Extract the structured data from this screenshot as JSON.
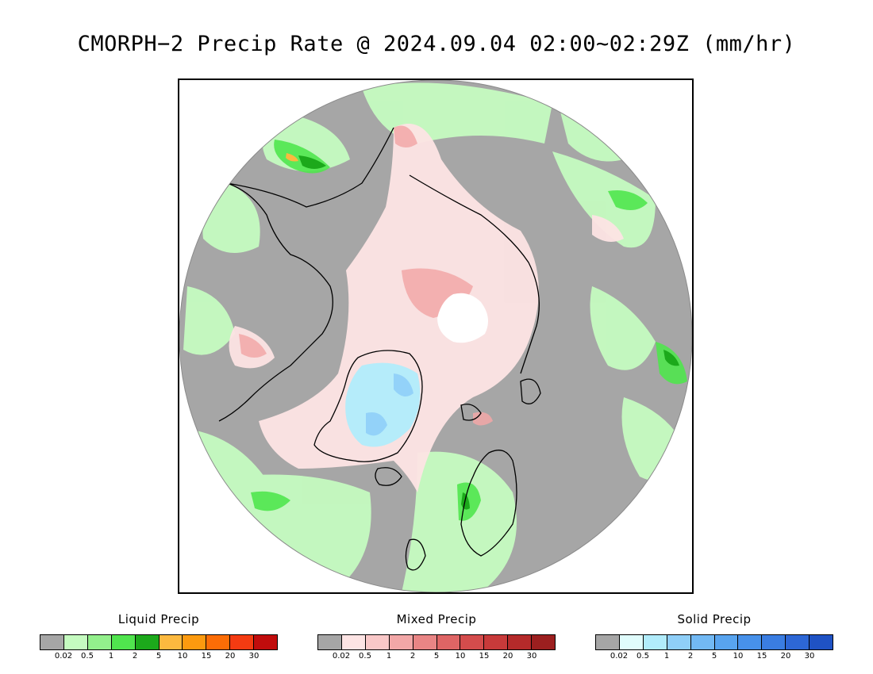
{
  "title": "CMORPH−2 Precip Rate @ 2024.09.04 02:00~02:29Z (mm/hr)",
  "map": {
    "projection": "north polar stereographic",
    "background_color": "#a6a6a6",
    "no_data_color": "#ffffff",
    "coastline_color": "#000000"
  },
  "legends": [
    {
      "title": "Liquid Precip",
      "colors": [
        "#a6a6a6",
        "#c5fbc0",
        "#93f08c",
        "#50e54e",
        "#1ca91b",
        "#fcb93f",
        "#fc9a0f",
        "#fc6d06",
        "#f43b12",
        "#c10c0c"
      ],
      "tick_labels": [
        "0.02",
        "0.5",
        "1",
        "2",
        "5",
        "10",
        "15",
        "20",
        "30"
      ]
    },
    {
      "title": "Mixed Precip",
      "colors": [
        "#a6a6a6",
        "#fde4e4",
        "#f9c8c8",
        "#f2a7a7",
        "#e98585",
        "#df6565",
        "#d44c4c",
        "#c83a3a",
        "#b52a2a",
        "#9c1f1f"
      ],
      "tick_labels": [
        "0.02",
        "0.5",
        "1",
        "2",
        "5",
        "10",
        "15",
        "20",
        "30"
      ]
    },
    {
      "title": "Solid Precip",
      "colors": [
        "#a6a6a6",
        "#e0fcfc",
        "#b1ecfb",
        "#8fcff8",
        "#72b9f4",
        "#58a4ef",
        "#4791ea",
        "#3a7de2",
        "#2d67d6",
        "#1f52c4"
      ],
      "tick_labels": [
        "0.02",
        "0.5",
        "1",
        "2",
        "5",
        "10",
        "15",
        "20",
        "30"
      ]
    }
  ]
}
